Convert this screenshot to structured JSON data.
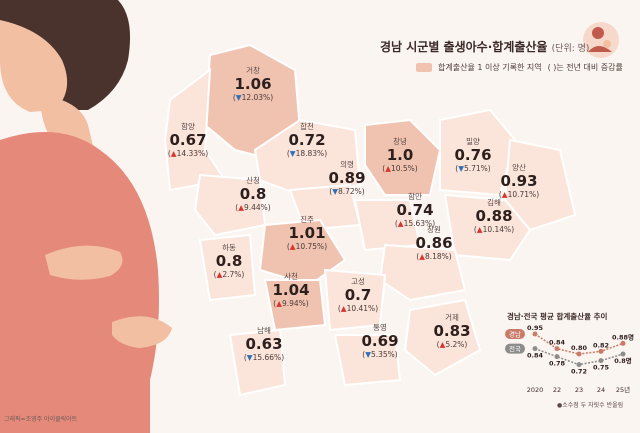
{
  "title": "경남 시군별 출생아수·합계출산율",
  "unit": "(단위: 명)",
  "legend": {
    "swatch_label": "합계출산율 1 이상 기록한 지역",
    "paren_note": "( )는 전년 대비 증감률"
  },
  "colors": {
    "highlight": "#f0c3b1",
    "base": "#fbe4da",
    "increase": "#d6362f",
    "decrease": "#2e6fb7",
    "gyeongnam_line": "#c97b68",
    "national_line": "#8c8c8c"
  },
  "regions": [
    {
      "name": "거창",
      "rate": "1.06",
      "change": "12.03%",
      "direction": "down",
      "highlight": true
    },
    {
      "name": "함양",
      "rate": "0.67",
      "change": "14.33%",
      "direction": "up",
      "highlight": false
    },
    {
      "name": "합천",
      "rate": "0.72",
      "change": "18.83%",
      "direction": "down",
      "highlight": false
    },
    {
      "name": "창녕",
      "rate": "1.0",
      "change": "10.5%",
      "direction": "up",
      "highlight": true
    },
    {
      "name": "밀양",
      "rate": "0.76",
      "change": "5.71%",
      "direction": "down",
      "highlight": false
    },
    {
      "name": "양산",
      "rate": "0.93",
      "change": "10.71%",
      "direction": "up",
      "highlight": false
    },
    {
      "name": "산청",
      "rate": "0.8",
      "change": "9.44%",
      "direction": "up",
      "highlight": false
    },
    {
      "name": "의령",
      "rate": "0.89",
      "change": "8.72%",
      "direction": "down",
      "highlight": false
    },
    {
      "name": "함안",
      "rate": "0.74",
      "change": "15.63%",
      "direction": "up",
      "highlight": false
    },
    {
      "name": "김해",
      "rate": "0.88",
      "change": "10.14%",
      "direction": "up",
      "highlight": false
    },
    {
      "name": "진주",
      "rate": "1.01",
      "change": "10.75%",
      "direction": "up",
      "highlight": true
    },
    {
      "name": "창원",
      "rate": "0.86",
      "change": "8.18%",
      "direction": "up",
      "highlight": false
    },
    {
      "name": "하동",
      "rate": "0.8",
      "change": "2.7%",
      "direction": "up",
      "highlight": false
    },
    {
      "name": "사천",
      "rate": "1.04",
      "change": "9.94%",
      "direction": "up",
      "highlight": true
    },
    {
      "name": "고성",
      "rate": "0.7",
      "change": "10.41%",
      "direction": "up",
      "highlight": false
    },
    {
      "name": "거제",
      "rate": "0.83",
      "change": "5.2%",
      "direction": "up",
      "highlight": false
    },
    {
      "name": "남해",
      "rate": "0.63",
      "change": "15.66%",
      "direction": "down",
      "highlight": false
    },
    {
      "name": "통영",
      "rate": "0.69",
      "change": "5.35%",
      "direction": "down",
      "highlight": false
    }
  ],
  "chart_data": {
    "type": "line",
    "title": "경남·전국 평균 합계출산율 추이",
    "categories": [
      "2020",
      "22",
      "23",
      "24",
      "25년"
    ],
    "series": [
      {
        "name": "경남",
        "values": [
          0.95,
          0.84,
          0.8,
          0.82,
          0.88
        ],
        "labels": [
          "0.95",
          "0.84",
          "0.80",
          "0.82",
          "0.88명"
        ]
      },
      {
        "name": "전국",
        "values": [
          0.84,
          0.78,
          0.72,
          0.75,
          0.8
        ],
        "labels": [
          "0.84",
          "0.78",
          "0.72",
          "0.75",
          "0.8명"
        ]
      }
    ],
    "note": "●소수점 두 자릿수 반올림"
  },
  "credit": "그래픽=조영주 아이클릭아트"
}
